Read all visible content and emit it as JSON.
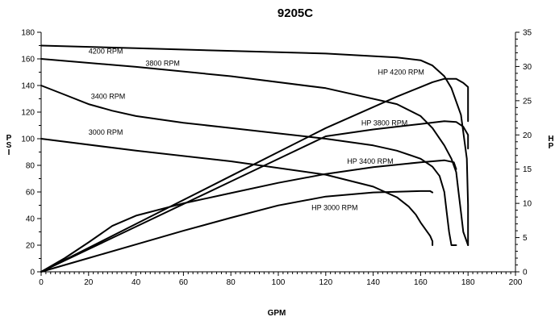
{
  "chart_data": {
    "type": "line",
    "title": "9205C",
    "xlabel": "GPM",
    "ylabel": "PSI",
    "y2label": "HP",
    "xlim": [
      0,
      200
    ],
    "ylim": [
      0,
      180
    ],
    "y2lim": [
      0,
      35
    ],
    "x_ticks": [
      0,
      20,
      40,
      60,
      80,
      100,
      120,
      140,
      160,
      180,
      200
    ],
    "y_ticks": [
      0,
      20,
      40,
      60,
      80,
      100,
      120,
      140,
      160,
      180
    ],
    "y2_ticks": [
      0,
      5,
      10,
      15,
      20,
      25,
      30,
      35
    ],
    "grid": false,
    "series": [
      {
        "name": "4200 RPM",
        "axis": "left",
        "x": [
          0,
          40,
          80,
          120,
          150,
          160,
          165,
          170,
          173,
          175,
          177,
          178,
          179.5,
          180,
          180
        ],
        "y": [
          170,
          168,
          166,
          164,
          161,
          159,
          155,
          147,
          138,
          128,
          118,
          105,
          85,
          50,
          20
        ]
      },
      {
        "name": "3800 RPM",
        "axis": "left",
        "x": [
          0,
          40,
          80,
          120,
          150,
          160,
          165,
          170,
          173,
          175,
          176,
          177,
          178,
          180
        ],
        "y": [
          160,
          154,
          147,
          138,
          126,
          117,
          108,
          95,
          85,
          75,
          60,
          45,
          30,
          20
        ]
      },
      {
        "name": "3400 RPM",
        "axis": "left",
        "x": [
          0,
          10,
          20,
          30,
          40,
          60,
          80,
          100,
          120,
          140,
          150,
          160,
          165,
          168,
          170,
          171,
          172,
          173,
          175
        ],
        "y": [
          140,
          133,
          126,
          121,
          117,
          112,
          108,
          104,
          100,
          95,
          91,
          85,
          79,
          72,
          60,
          45,
          30,
          20,
          20
        ]
      },
      {
        "name": "3000 RPM",
        "axis": "left",
        "x": [
          0,
          40,
          80,
          120,
          140,
          150,
          155,
          158,
          160,
          162,
          164,
          165,
          165
        ],
        "y": [
          100,
          91,
          83,
          73,
          64,
          56,
          49,
          43,
          37,
          32,
          27,
          23,
          20
        ]
      },
      {
        "name": "HP 4200 RPM",
        "axis": "right",
        "x": [
          0,
          40,
          80,
          120,
          150,
          160,
          165,
          170,
          175,
          178,
          180,
          180
        ],
        "y": [
          0,
          7,
          14,
          21,
          25.6,
          27,
          27.7,
          28.2,
          28.2,
          27.6,
          27,
          22
        ]
      },
      {
        "name": "HP 3800 RPM",
        "axis": "right",
        "x": [
          0,
          20,
          40,
          60,
          80,
          100,
          120,
          140,
          160,
          165,
          170,
          175,
          178,
          180,
          180
        ],
        "y": [
          0,
          3.3,
          6.6,
          9.9,
          13.2,
          16.5,
          19.8,
          20.8,
          21.6,
          21.8,
          22,
          21.9,
          21.2,
          20,
          18
        ]
      },
      {
        "name": "HP 3400 RPM",
        "axis": "right",
        "x": [
          0,
          10,
          20,
          30,
          40,
          60,
          80,
          100,
          120,
          140,
          160,
          170,
          174,
          175
        ],
        "y": [
          0,
          2,
          4.3,
          6.7,
          8.2,
          10,
          11.5,
          13,
          14.3,
          15.3,
          16,
          16.3,
          16,
          15
        ]
      },
      {
        "name": "HP 3000 RPM",
        "axis": "right",
        "x": [
          0,
          20,
          40,
          60,
          80,
          100,
          120,
          140,
          160,
          164,
          165
        ],
        "y": [
          0,
          2,
          4,
          6,
          7.9,
          9.7,
          11,
          11.6,
          11.8,
          11.8,
          11.6
        ]
      }
    ]
  }
}
